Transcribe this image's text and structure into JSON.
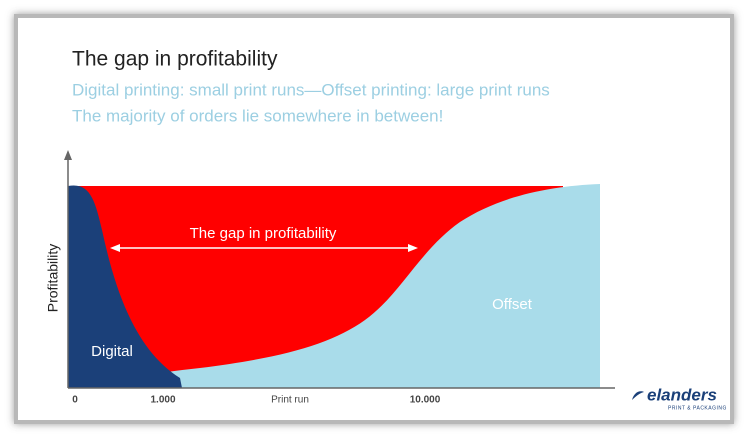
{
  "slide": {
    "title": "The gap in profitability",
    "subtitle_lines": [
      "Digital printing: small print runs—Offset printing: large print runs",
      "The majority of orders lie somewhere in between!"
    ]
  },
  "diagram": {
    "y_axis_label": "Profitability",
    "x_axis_label": "Print run",
    "x_tick_labels": [
      "0",
      "1.000",
      "10.000"
    ],
    "gap_label": "The gap in profitability",
    "digital_label": "Digital",
    "offset_label": "Offset"
  },
  "logo": {
    "name": "elanders",
    "tagline": "PRINT & PACKAGING"
  }
}
